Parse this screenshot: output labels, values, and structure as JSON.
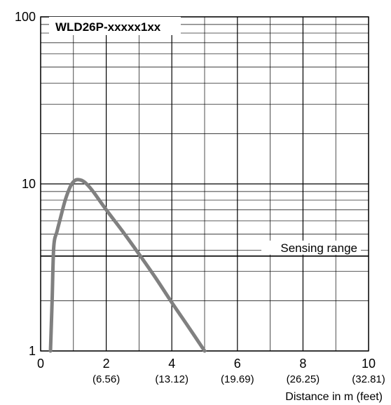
{
  "chart_data": {
    "type": "line",
    "title": "WLD26P-xxxxx1xx",
    "xlabel": "Distance in m (feet)",
    "ylabel": "",
    "xlim": [
      0,
      10
    ],
    "ylim": [
      1,
      100
    ],
    "yscale": "log",
    "grid": true,
    "x_ticks": [
      {
        "value": 0,
        "label": "0",
        "sub": ""
      },
      {
        "value": 2,
        "label": "2",
        "sub": "(6.56)"
      },
      {
        "value": 4,
        "label": "4",
        "sub": "(13.12)"
      },
      {
        "value": 6,
        "label": "6",
        "sub": "(19.69)"
      },
      {
        "value": 8,
        "label": "8",
        "sub": "(26.25)"
      },
      {
        "value": 10,
        "label": "10",
        "sub": "(32.81)"
      }
    ],
    "y_ticks": [
      {
        "value": 1,
        "label": "1"
      },
      {
        "value": 10,
        "label": "10"
      },
      {
        "value": 100,
        "label": "100"
      }
    ],
    "series": [
      {
        "x": [
          0.3,
          0.35,
          0.4,
          0.5,
          0.6,
          0.75,
          0.9,
          1.0,
          1.1,
          1.25,
          1.4,
          1.6,
          2.0,
          2.5,
          3.0,
          3.5,
          4.0,
          4.5,
          5.0
        ],
        "y": [
          1.0,
          2.0,
          4.2,
          5.2,
          6.2,
          8.0,
          9.6,
          10.3,
          10.6,
          10.5,
          10.0,
          9.0,
          7.0,
          5.2,
          3.8,
          2.75,
          1.95,
          1.4,
          1.0
        ],
        "color": "#808080"
      }
    ],
    "threshold": {
      "label": "Sensing range",
      "value": 3.7
    },
    "colors": {
      "curve": "#808080",
      "grid": "#000000",
      "background": "#ffffff"
    }
  }
}
